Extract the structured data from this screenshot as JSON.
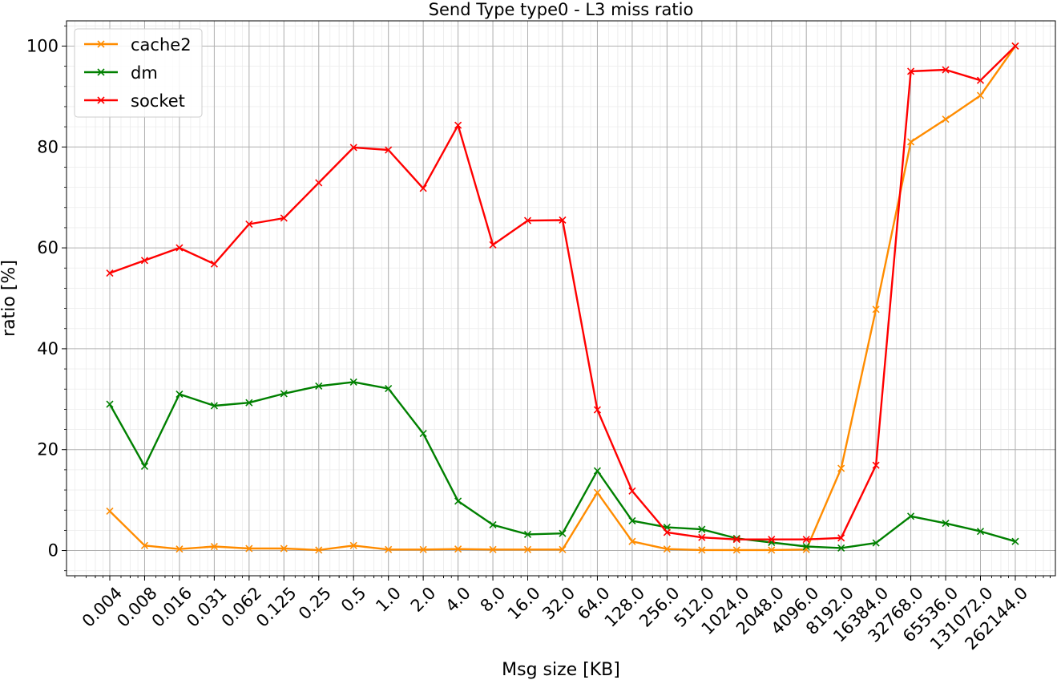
{
  "chart_data": {
    "type": "line",
    "title": "Send Type type0 - L3 miss ratio",
    "xlabel": "Msg size [KB]",
    "ylabel": "ratio [%]",
    "x_scale": "log2",
    "categories": [
      "0.004",
      "0.008",
      "0.016",
      "0.031",
      "0.062",
      "0.125",
      "0.25",
      "0.5",
      "1.0",
      "2.0",
      "4.0",
      "8.0",
      "16.0",
      "32.0",
      "64.0",
      "128.0",
      "256.0",
      "512.0",
      "1024.0",
      "2048.0",
      "4096.0",
      "8192.0",
      "16384.0",
      "32768.0",
      "65536.0",
      "131072.0",
      "262144.0"
    ],
    "ylim": [
      -5,
      105
    ],
    "yticks": [
      0,
      20,
      40,
      60,
      80,
      100
    ],
    "grid": true,
    "legend_position": "top-left",
    "series": [
      {
        "name": "cache2",
        "color": "#ff8c00",
        "marker": "x",
        "values": [
          7.8,
          1.0,
          0.3,
          0.8,
          0.4,
          0.4,
          0.1,
          1.0,
          0.2,
          0.2,
          0.3,
          0.2,
          0.2,
          0.2,
          11.5,
          1.8,
          0.3,
          0.1,
          0.1,
          0.1,
          0.2,
          16.3,
          47.8,
          81.0,
          85.5,
          90.2,
          100.0
        ]
      },
      {
        "name": "dm",
        "color": "#008000",
        "marker": "x",
        "values": [
          29.0,
          16.7,
          31.0,
          28.7,
          29.3,
          31.1,
          32.6,
          33.4,
          32.1,
          23.2,
          9.8,
          5.1,
          3.2,
          3.4,
          15.8,
          5.9,
          4.6,
          4.2,
          2.4,
          1.6,
          0.8,
          0.5,
          1.5,
          6.8,
          5.4,
          3.8,
          1.8
        ]
      },
      {
        "name": "socket",
        "color": "#ff0000",
        "marker": "x",
        "values": [
          55.0,
          57.5,
          60.0,
          56.8,
          64.7,
          65.9,
          72.9,
          79.9,
          79.4,
          71.8,
          84.3,
          60.6,
          65.4,
          65.5,
          27.9,
          11.8,
          3.6,
          2.6,
          2.2,
          2.2,
          2.2,
          2.5,
          16.9,
          95.0,
          95.3,
          93.2,
          100.0
        ]
      }
    ]
  }
}
